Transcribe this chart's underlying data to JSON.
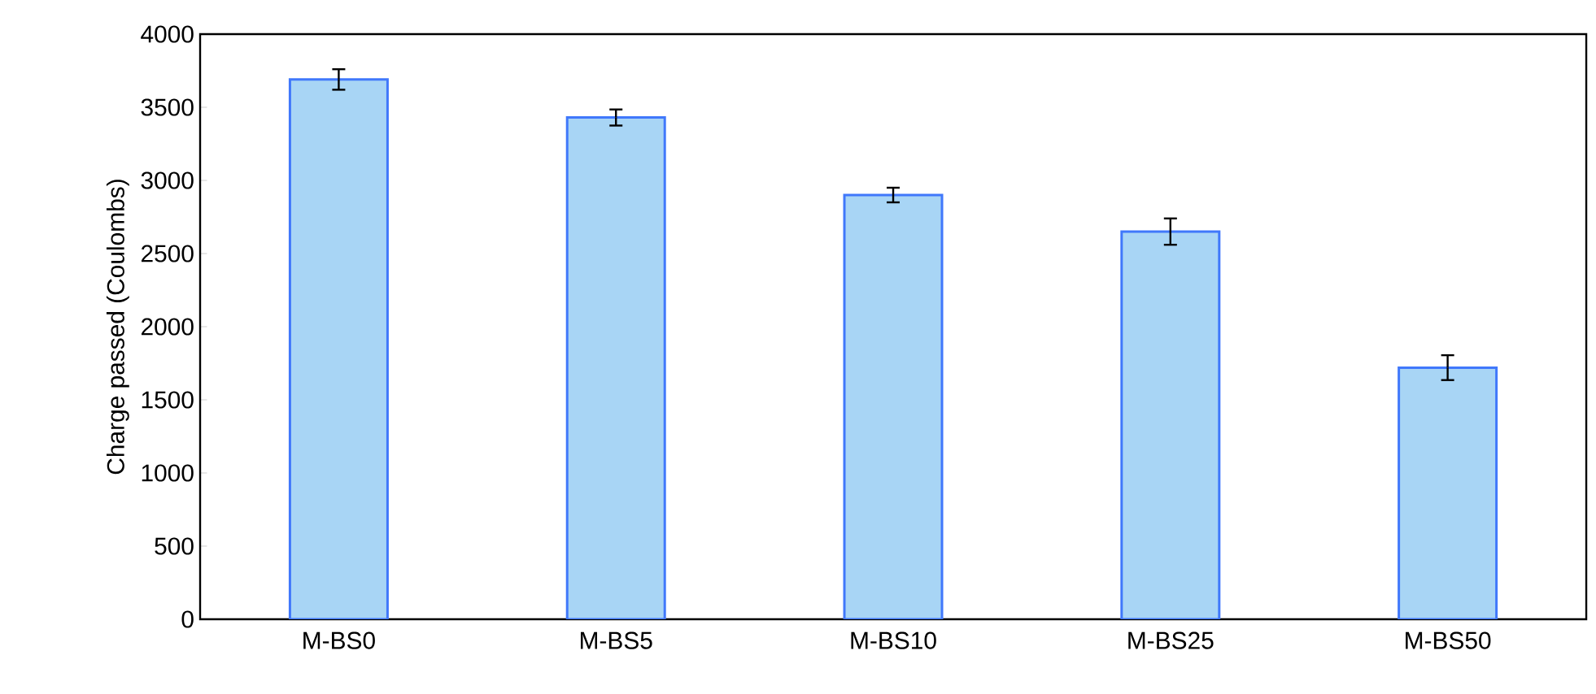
{
  "chart_data": {
    "type": "bar",
    "ylabel": "Charge passed (Coulombs)",
    "categories": [
      "M-BS0",
      "M-BS5",
      "M-BS10",
      "M-BS25",
      "M-BS50"
    ],
    "values": [
      3690,
      3430,
      2900,
      2650,
      1720
    ],
    "errors": [
      70,
      55,
      50,
      90,
      85
    ],
    "color": "#a8d5f5",
    "ylim": [
      0,
      4000
    ],
    "yticks": [
      0,
      500,
      1000,
      1500,
      2000,
      2500,
      3000,
      3500,
      4000
    ],
    "grid": false
  }
}
